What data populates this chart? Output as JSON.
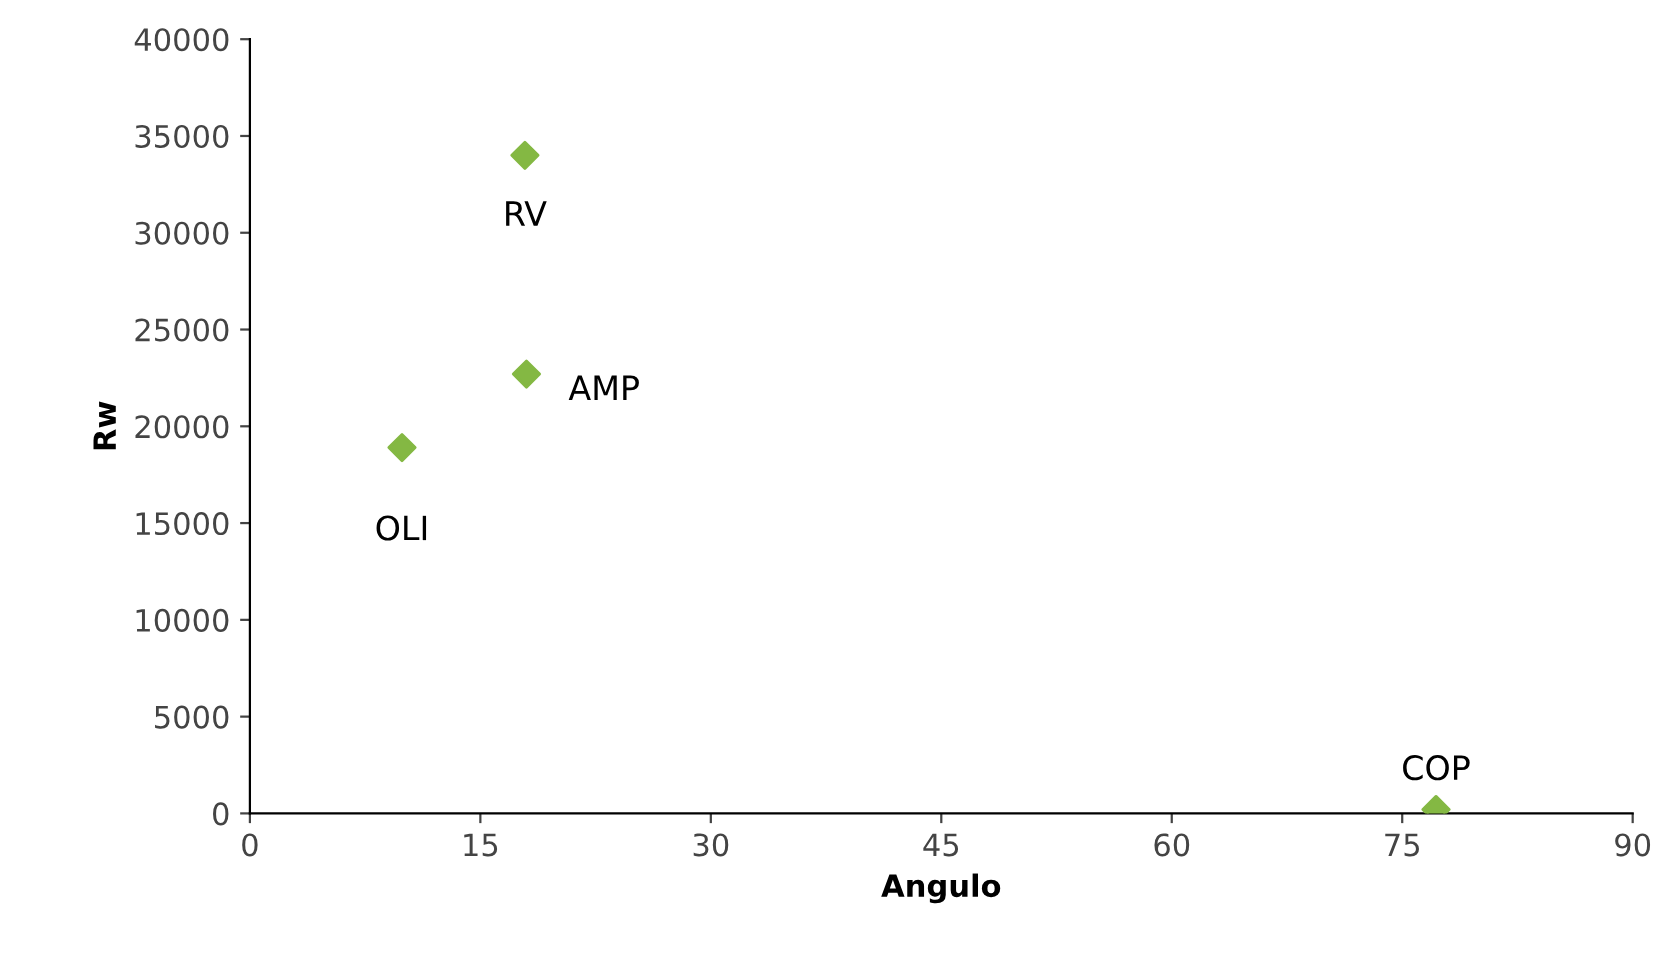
{
  "chart_data": {
    "type": "scatter",
    "xlabel": "Angulo",
    "ylabel": "Rw",
    "x": [
      17.9,
      18.0,
      9.9,
      77.2
    ],
    "series": [
      {
        "color": "#84b843",
        "values": [
          34000,
          22700,
          18900,
          200
        ]
      }
    ],
    "annotations": [
      {
        "text": "RV",
        "x": 17.9,
        "y": 34000
      },
      {
        "text": "AMP",
        "x": 18.0,
        "y": 22700
      },
      {
        "text": "OLI",
        "x": 9.9,
        "y": 18900
      },
      {
        "text": "COP",
        "x": 77.2,
        "y": 200
      }
    ],
    "xlim": [
      0,
      90
    ],
    "xticks": [
      0,
      15,
      30,
      45,
      60,
      75,
      90
    ],
    "ylim": [
      0,
      40000
    ],
    "yticks": [
      0,
      5000,
      10000,
      15000,
      20000,
      25000,
      30000,
      35000,
      40000
    ],
    "grid": false,
    "legend": false,
    "marker": "diamond"
  }
}
